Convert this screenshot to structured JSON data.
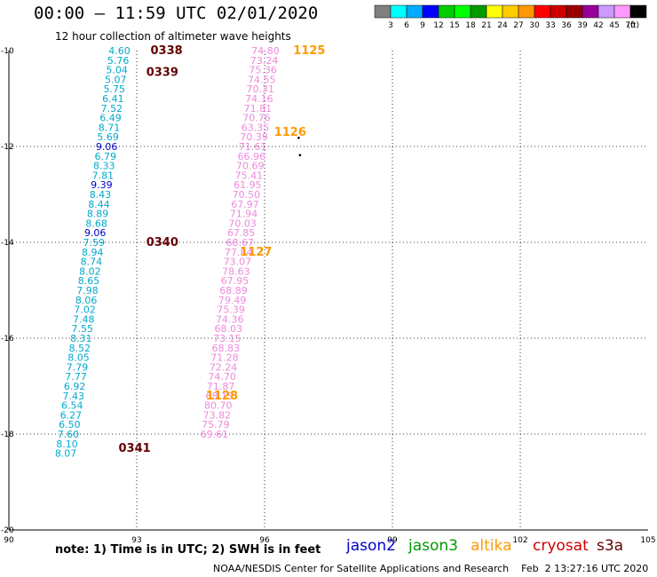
{
  "title": "00:00 — 11:59 UTC 02/01/2020",
  "subtitle": "12 hour collection of altimeter wave heights",
  "note": "note: 1) Time is in UTC; 2) SWH is in feet",
  "credit": "NOAA/NESDIS Center for Satellite Applications and Research    Feb  2 13:27:16 UTC 2020",
  "satellites": [
    {
      "name": "jason2",
      "color": "#0000cc"
    },
    {
      "name": "jason3",
      "color": "#009900"
    },
    {
      "name": "altika",
      "color": "#ff9900"
    },
    {
      "name": "cryosat",
      "color": "#cc0000"
    },
    {
      "name": "s3a",
      "color": "#660000"
    }
  ],
  "colorbar": {
    "unit_label": "(ft)",
    "labels": [
      "3",
      "6",
      "9",
      "12",
      "15",
      "18",
      "21",
      "24",
      "27",
      "30",
      "33",
      "36",
      "39",
      "42",
      "45",
      "70"
    ],
    "colors": [
      "#808080",
      "#00ffff",
      "#00aaff",
      "#0000ff",
      "#00cc00",
      "#00ff00",
      "#009900",
      "#ffff00",
      "#ffcc00",
      "#ff9900",
      "#ff0000",
      "#cc0000",
      "#990000",
      "#990099",
      "#cc99ff",
      "#ff99ff",
      "#000000"
    ]
  },
  "map": {
    "lon_range": [
      90,
      105
    ],
    "lat_range": [
      -20,
      -10
    ],
    "lon_ticks": [
      "90",
      "93",
      "96",
      "99",
      "102",
      "105"
    ],
    "lat_ticks": [
      "-10",
      "-12",
      "-14",
      "-16",
      "-18",
      "-20"
    ]
  },
  "tracks": [
    {
      "color": "#00aacc",
      "points": [
        {
          "lat": -10.0,
          "lon": 92.85,
          "v": "4.60"
        },
        {
          "lat": -10.2,
          "lon": 92.82,
          "v": "5.76"
        },
        {
          "lat": -10.4,
          "lon": 92.79,
          "v": "5.04"
        },
        {
          "lat": -10.6,
          "lon": 92.76,
          "v": "5.07"
        },
        {
          "lat": -10.8,
          "lon": 92.73,
          "v": "5.75"
        },
        {
          "lat": -11.0,
          "lon": 92.7,
          "v": "6.41"
        },
        {
          "lat": -11.2,
          "lon": 92.67,
          "v": "7.52"
        },
        {
          "lat": -11.4,
          "lon": 92.64,
          "v": "6.49"
        },
        {
          "lat": -11.6,
          "lon": 92.61,
          "v": "8.71"
        },
        {
          "lat": -11.8,
          "lon": 92.58,
          "v": "5.69"
        },
        {
          "lat": -12.0,
          "lon": 92.55,
          "v": "9.06",
          "c": "#0000cc"
        },
        {
          "lat": -12.2,
          "lon": 92.52,
          "v": "6.79"
        },
        {
          "lat": -12.4,
          "lon": 92.49,
          "v": "8.33"
        },
        {
          "lat": -12.6,
          "lon": 92.46,
          "v": "7.81"
        },
        {
          "lat": -12.8,
          "lon": 92.43,
          "v": "9.39",
          "c": "#0000cc"
        },
        {
          "lat": -13.0,
          "lon": 92.4,
          "v": "8.43"
        },
        {
          "lat": -13.2,
          "lon": 92.37,
          "v": "8.44"
        },
        {
          "lat": -13.4,
          "lon": 92.34,
          "v": "8.89"
        },
        {
          "lat": -13.6,
          "lon": 92.31,
          "v": "8.68"
        },
        {
          "lat": -13.8,
          "lon": 92.28,
          "v": "9.06",
          "c": "#0000cc"
        },
        {
          "lat": -14.0,
          "lon": 92.25,
          "v": "7.59"
        },
        {
          "lat": -14.2,
          "lon": 92.22,
          "v": "8.94"
        },
        {
          "lat": -14.4,
          "lon": 92.19,
          "v": "8.74"
        },
        {
          "lat": -14.6,
          "lon": 92.16,
          "v": "8.02"
        },
        {
          "lat": -14.8,
          "lon": 92.13,
          "v": "8.65"
        },
        {
          "lat": -15.0,
          "lon": 92.1,
          "v": "7.98"
        },
        {
          "lat": -15.2,
          "lon": 92.07,
          "v": "8.06"
        },
        {
          "lat": -15.4,
          "lon": 92.04,
          "v": "7.02"
        },
        {
          "lat": -15.6,
          "lon": 92.01,
          "v": "7.48"
        },
        {
          "lat": -15.8,
          "lon": 91.98,
          "v": "7.55"
        },
        {
          "lat": -16.0,
          "lon": 91.95,
          "v": "8.31"
        },
        {
          "lat": -16.2,
          "lon": 91.92,
          "v": "8.52"
        },
        {
          "lat": -16.4,
          "lon": 91.89,
          "v": "8.05"
        },
        {
          "lat": -16.6,
          "lon": 91.86,
          "v": "7.79"
        },
        {
          "lat": -16.8,
          "lon": 91.83,
          "v": "7.77"
        },
        {
          "lat": -17.0,
          "lon": 91.8,
          "v": "6.92"
        },
        {
          "lat": -17.2,
          "lon": 91.77,
          "v": "7.43"
        },
        {
          "lat": -17.4,
          "lon": 91.74,
          "v": "6.54"
        },
        {
          "lat": -17.6,
          "lon": 91.71,
          "v": "6.27"
        },
        {
          "lat": -17.8,
          "lon": 91.68,
          "v": "6.50"
        },
        {
          "lat": -18.0,
          "lon": 91.65,
          "v": "7.60"
        },
        {
          "lat": -18.2,
          "lon": 91.62,
          "v": "8.10"
        },
        {
          "lat": -18.4,
          "lon": 91.59,
          "v": "8.07"
        }
      ]
    },
    {
      "color": "#ee88dd",
      "points": [
        {
          "lat": -10.0,
          "lon": 96.35,
          "v": "74.80"
        },
        {
          "lat": -10.2,
          "lon": 96.32,
          "v": "73.24"
        },
        {
          "lat": -10.4,
          "lon": 96.29,
          "v": "75.36"
        },
        {
          "lat": -10.6,
          "lon": 96.26,
          "v": "74.55"
        },
        {
          "lat": -10.8,
          "lon": 96.23,
          "v": "70.31"
        },
        {
          "lat": -11.0,
          "lon": 96.2,
          "v": "74.16"
        },
        {
          "lat": -11.2,
          "lon": 96.17,
          "v": "71.81"
        },
        {
          "lat": -11.4,
          "lon": 96.14,
          "v": "70.76"
        },
        {
          "lat": -11.6,
          "lon": 96.11,
          "v": "63.35"
        },
        {
          "lat": -11.8,
          "lon": 96.08,
          "v": "70.39"
        },
        {
          "lat": -12.0,
          "lon": 96.05,
          "v": "71.61"
        },
        {
          "lat": -12.2,
          "lon": 96.02,
          "v": "66.96"
        },
        {
          "lat": -12.4,
          "lon": 95.99,
          "v": "70.69"
        },
        {
          "lat": -12.6,
          "lon": 95.96,
          "v": "75.41"
        },
        {
          "lat": -12.8,
          "lon": 95.93,
          "v": "61.95"
        },
        {
          "lat": -13.0,
          "lon": 95.9,
          "v": "70.50"
        },
        {
          "lat": -13.2,
          "lon": 95.87,
          "v": "67.97"
        },
        {
          "lat": -13.4,
          "lon": 95.84,
          "v": "71.94"
        },
        {
          "lat": -13.6,
          "lon": 95.81,
          "v": "70.03"
        },
        {
          "lat": -13.8,
          "lon": 95.78,
          "v": "67.85"
        },
        {
          "lat": -14.0,
          "lon": 95.75,
          "v": "68.67"
        },
        {
          "lat": -14.2,
          "lon": 95.72,
          "v": "77.84"
        },
        {
          "lat": -14.4,
          "lon": 95.69,
          "v": "73.07"
        },
        {
          "lat": -14.6,
          "lon": 95.66,
          "v": "78.63"
        },
        {
          "lat": -14.8,
          "lon": 95.63,
          "v": "67.95"
        },
        {
          "lat": -15.0,
          "lon": 95.6,
          "v": "68.89"
        },
        {
          "lat": -15.2,
          "lon": 95.57,
          "v": "79.49"
        },
        {
          "lat": -15.4,
          "lon": 95.54,
          "v": "75.39"
        },
        {
          "lat": -15.6,
          "lon": 95.51,
          "v": "74.36"
        },
        {
          "lat": -15.8,
          "lon": 95.48,
          "v": "68.03"
        },
        {
          "lat": -16.0,
          "lon": 95.45,
          "v": "73.15"
        },
        {
          "lat": -16.2,
          "lon": 95.42,
          "v": "68.83"
        },
        {
          "lat": -16.4,
          "lon": 95.39,
          "v": "71.28"
        },
        {
          "lat": -16.6,
          "lon": 95.36,
          "v": "72.24"
        },
        {
          "lat": -16.8,
          "lon": 95.33,
          "v": "74.70"
        },
        {
          "lat": -17.0,
          "lon": 95.3,
          "v": "71.87"
        },
        {
          "lat": -17.2,
          "lon": 95.27,
          "v": "68.15"
        },
        {
          "lat": -17.4,
          "lon": 95.24,
          "v": "80.70"
        },
        {
          "lat": -17.6,
          "lon": 95.21,
          "v": "73.82"
        },
        {
          "lat": -17.8,
          "lon": 95.18,
          "v": "75.79"
        },
        {
          "lat": -18.0,
          "lon": 95.15,
          "v": "69.61"
        }
      ]
    }
  ],
  "time_labels": [
    {
      "text": "0338",
      "lat": -10.0,
      "lon": 93.7,
      "color": "#660000"
    },
    {
      "text": "0339",
      "lat": -10.45,
      "lon": 93.6,
      "color": "#660000"
    },
    {
      "text": "0340",
      "lat": -14.0,
      "lon": 93.6,
      "color": "#660000"
    },
    {
      "text": "0341",
      "lat": -18.3,
      "lon": 92.95,
      "color": "#660000"
    },
    {
      "text": "1125",
      "lat": -10.0,
      "lon": 97.05,
      "color": "#ff9900"
    },
    {
      "text": "1126",
      "lat": -11.7,
      "lon": 96.6,
      "color": "#ff9900"
    },
    {
      "text": "1127",
      "lat": -14.2,
      "lon": 95.8,
      "color": "#ff9900"
    },
    {
      "text": "1128",
      "lat": -17.2,
      "lon": 95.0,
      "color": "#ff9900"
    }
  ],
  "markers": [
    {
      "lat": -11.82,
      "lon": 96.8
    },
    {
      "lat": -12.18,
      "lon": 96.83
    }
  ]
}
